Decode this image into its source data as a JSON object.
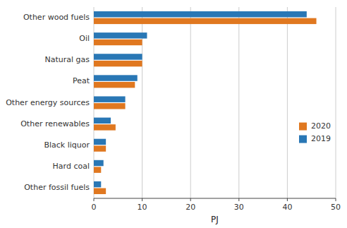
{
  "chart_data": {
    "type": "bar",
    "orientation": "horizontal",
    "categories": [
      "Other wood fuels",
      "Oil",
      "Natural gas",
      "Peat",
      "Other energy sources",
      "Other renewables",
      "Black liquor",
      "Hard coal",
      "Other fossil fuels"
    ],
    "series": [
      {
        "name": "2020",
        "color": "#E07820",
        "values": [
          46,
          10,
          10,
          8.5,
          6.5,
          4.5,
          2.5,
          1.5,
          2.5
        ]
      },
      {
        "name": "2019",
        "color": "#2977B5",
        "values": [
          44,
          11,
          10,
          9,
          6.5,
          3.5,
          2.5,
          2,
          1.5
        ]
      }
    ],
    "xlabel": "PJ",
    "xlim": [
      0,
      50
    ],
    "xticks": [
      0,
      10,
      20,
      30,
      40,
      50
    ],
    "grid": true,
    "legend": "right"
  }
}
